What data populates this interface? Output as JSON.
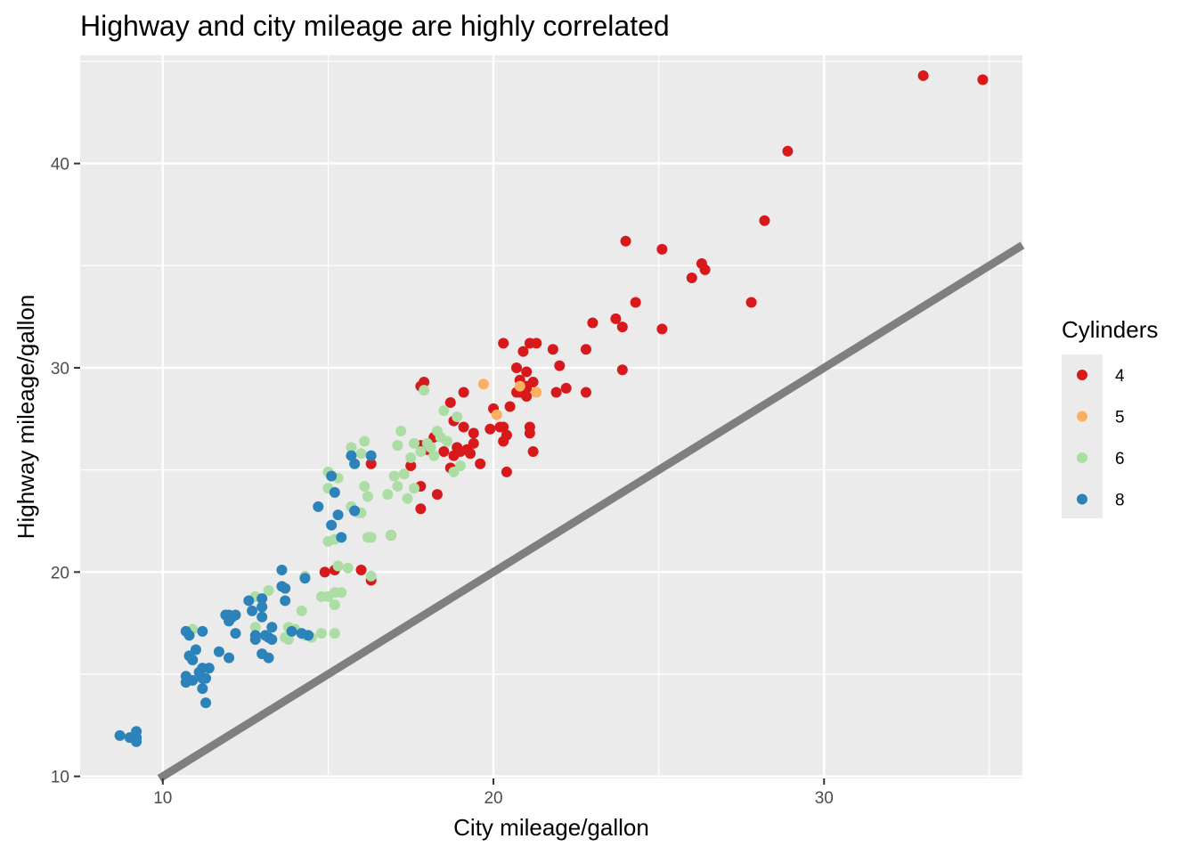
{
  "chart_data": {
    "type": "scatter",
    "title": "Highway and city mileage are highly correlated",
    "xlabel": "City mileage/gallon",
    "ylabel": "Highway mileage/gallon",
    "xlim": [
      7.5,
      36.0
    ],
    "ylim": [
      9.9,
      45.3
    ],
    "x_ticks": [
      10,
      20,
      30
    ],
    "y_ticks": [
      10,
      20,
      30,
      40
    ],
    "grid": true,
    "background": "#ebebeb",
    "reference_line": {
      "slope": 1,
      "intercept": 0,
      "color": "#7f7f7f"
    },
    "legend": {
      "title": "Cylinders",
      "position": "right",
      "entries": [
        {
          "label": "4",
          "color": "#d7191c"
        },
        {
          "label": "5",
          "color": "#fdae61"
        },
        {
          "label": "6",
          "color": "#abdda4"
        },
        {
          "label": "8",
          "color": "#2b83ba"
        }
      ]
    },
    "series": [
      {
        "name": "4",
        "color": "#d7191c",
        "points": [
          [
            33.0,
            44.3
          ],
          [
            34.8,
            44.1
          ],
          [
            28.9,
            40.6
          ],
          [
            28.2,
            37.2
          ],
          [
            24.0,
            36.2
          ],
          [
            25.1,
            35.8
          ],
          [
            26.3,
            35.1
          ],
          [
            26.4,
            34.8
          ],
          [
            26.0,
            34.4
          ],
          [
            27.8,
            33.2
          ],
          [
            24.3,
            33.2
          ],
          [
            23.7,
            32.4
          ],
          [
            23.0,
            32.2
          ],
          [
            23.9,
            32.0
          ],
          [
            25.1,
            31.9
          ],
          [
            20.3,
            31.2
          ],
          [
            21.1,
            31.2
          ],
          [
            21.3,
            31.2
          ],
          [
            22.8,
            30.9
          ],
          [
            21.8,
            30.9
          ],
          [
            20.9,
            30.8
          ],
          [
            22.0,
            30.1
          ],
          [
            20.7,
            30.0
          ],
          [
            23.9,
            29.9
          ],
          [
            21.0,
            29.8
          ],
          [
            20.8,
            29.4
          ],
          [
            21.2,
            29.3
          ],
          [
            17.9,
            29.3
          ],
          [
            17.8,
            29.1
          ],
          [
            21.0,
            29.0
          ],
          [
            22.2,
            29.0
          ],
          [
            21.0,
            29.1
          ],
          [
            20.7,
            28.8
          ],
          [
            21.9,
            28.8
          ],
          [
            22.8,
            28.8
          ],
          [
            19.1,
            28.8
          ],
          [
            20.8,
            28.8
          ],
          [
            21.0,
            28.6
          ],
          [
            18.7,
            28.3
          ],
          [
            20.0,
            28.0
          ],
          [
            20.5,
            28.1
          ],
          [
            19.9,
            27.0
          ],
          [
            20.3,
            27.1
          ],
          [
            20.2,
            27.1
          ],
          [
            21.1,
            27.1
          ],
          [
            21.1,
            26.8
          ],
          [
            20.4,
            26.7
          ],
          [
            18.8,
            27.4
          ],
          [
            19.1,
            27.1
          ],
          [
            19.4,
            26.8
          ],
          [
            18.2,
            26.6
          ],
          [
            18.9,
            26.1
          ],
          [
            19.2,
            26.0
          ],
          [
            19.4,
            26.3
          ],
          [
            19.3,
            25.8
          ],
          [
            18.8,
            25.7
          ],
          [
            17.8,
            26.2
          ],
          [
            18.0,
            26.0
          ],
          [
            18.5,
            25.9
          ],
          [
            20.3,
            26.4
          ],
          [
            21.2,
            25.9
          ],
          [
            19.0,
            25.9
          ],
          [
            18.7,
            25.1
          ],
          [
            19.6,
            25.3
          ],
          [
            17.5,
            25.2
          ],
          [
            16.3,
            25.3
          ],
          [
            20.4,
            24.9
          ],
          [
            17.8,
            24.2
          ],
          [
            18.3,
            23.8
          ],
          [
            17.8,
            23.1
          ],
          [
            16.9,
            21.8
          ],
          [
            16.0,
            20.1
          ],
          [
            14.9,
            20.0
          ],
          [
            15.2,
            20.1
          ],
          [
            16.3,
            19.6
          ]
        ]
      },
      {
        "name": "5",
        "color": "#fdae61",
        "points": [
          [
            19.7,
            29.2
          ],
          [
            20.8,
            29.1
          ],
          [
            21.3,
            28.8
          ],
          [
            20.1,
            27.7
          ]
        ]
      },
      {
        "name": "6",
        "color": "#abdda4",
        "points": [
          [
            17.9,
            28.9
          ],
          [
            18.5,
            27.9
          ],
          [
            18.9,
            27.6
          ],
          [
            18.3,
            26.9
          ],
          [
            17.2,
            26.9
          ],
          [
            16.1,
            26.4
          ],
          [
            15.7,
            26.1
          ],
          [
            17.1,
            26.2
          ],
          [
            17.6,
            26.3
          ],
          [
            18.0,
            26.3
          ],
          [
            18.4,
            26.6
          ],
          [
            18.1,
            26.1
          ],
          [
            18.6,
            26.4
          ],
          [
            17.8,
            25.9
          ],
          [
            18.2,
            25.7
          ],
          [
            17.5,
            25.6
          ],
          [
            16.0,
            25.8
          ],
          [
            19.0,
            25.2
          ],
          [
            18.8,
            24.9
          ],
          [
            17.3,
            24.8
          ],
          [
            17.0,
            24.7
          ],
          [
            17.1,
            24.2
          ],
          [
            17.6,
            24.1
          ],
          [
            17.4,
            23.6
          ],
          [
            15.0,
            24.9
          ],
          [
            15.3,
            24.6
          ],
          [
            15.0,
            24.1
          ],
          [
            16.1,
            24.2
          ],
          [
            16.8,
            23.8
          ],
          [
            16.2,
            23.7
          ],
          [
            15.7,
            23.2
          ],
          [
            15.9,
            22.9
          ],
          [
            16.0,
            22.9
          ],
          [
            15.2,
            21.6
          ],
          [
            15.0,
            21.5
          ],
          [
            16.2,
            21.7
          ],
          [
            16.3,
            21.7
          ],
          [
            16.9,
            21.8
          ],
          [
            15.3,
            20.3
          ],
          [
            15.6,
            20.2
          ],
          [
            16.3,
            19.8
          ],
          [
            14.3,
            19.8
          ],
          [
            15.4,
            19.0
          ],
          [
            15.2,
            19.0
          ],
          [
            15.0,
            18.8
          ],
          [
            14.8,
            18.8
          ],
          [
            15.2,
            18.4
          ],
          [
            14.2,
            18.1
          ],
          [
            13.2,
            19.1
          ],
          [
            12.8,
            18.8
          ],
          [
            13.0,
            18.3
          ],
          [
            12.8,
            17.3
          ],
          [
            13.8,
            17.3
          ],
          [
            14.0,
            17.2
          ],
          [
            14.8,
            17.0
          ],
          [
            15.2,
            17.0
          ],
          [
            14.3,
            16.9
          ],
          [
            14.5,
            16.8
          ],
          [
            13.7,
            16.8
          ],
          [
            13.8,
            16.7
          ],
          [
            10.9,
            17.2
          ]
        ]
      },
      {
        "name": "8",
        "color": "#2b83ba",
        "points": [
          [
            16.3,
            25.7
          ],
          [
            15.7,
            25.7
          ],
          [
            15.8,
            25.3
          ],
          [
            15.1,
            24.7
          ],
          [
            15.2,
            23.9
          ],
          [
            14.7,
            23.2
          ],
          [
            15.8,
            23.0
          ],
          [
            15.3,
            22.8
          ],
          [
            15.1,
            22.3
          ],
          [
            15.4,
            21.7
          ],
          [
            13.6,
            20.1
          ],
          [
            14.3,
            19.7
          ],
          [
            13.6,
            19.3
          ],
          [
            13.7,
            19.2
          ],
          [
            13.0,
            18.7
          ],
          [
            12.6,
            18.6
          ],
          [
            13.0,
            18.3
          ],
          [
            13.7,
            18.6
          ],
          [
            12.7,
            18.1
          ],
          [
            12.0,
            17.9
          ],
          [
            12.2,
            17.9
          ],
          [
            11.9,
            17.9
          ],
          [
            12.1,
            17.8
          ],
          [
            13.0,
            17.8
          ],
          [
            12.0,
            17.6
          ],
          [
            13.3,
            17.3
          ],
          [
            13.9,
            17.1
          ],
          [
            14.2,
            17.0
          ],
          [
            12.2,
            17.0
          ],
          [
            11.2,
            17.1
          ],
          [
            10.7,
            17.1
          ],
          [
            10.8,
            16.9
          ],
          [
            14.4,
            16.9
          ],
          [
            13.1,
            16.9
          ],
          [
            12.8,
            16.9
          ],
          [
            13.2,
            16.8
          ],
          [
            13.3,
            16.7
          ],
          [
            12.8,
            16.7
          ],
          [
            13.0,
            16.0
          ],
          [
            13.2,
            15.8
          ],
          [
            12.0,
            15.8
          ],
          [
            11.7,
            16.1
          ],
          [
            11.0,
            16.2
          ],
          [
            10.8,
            15.9
          ],
          [
            10.9,
            15.7
          ],
          [
            11.2,
            15.3
          ],
          [
            11.4,
            15.3
          ],
          [
            11.1,
            15.1
          ],
          [
            11.3,
            14.8
          ],
          [
            11.2,
            14.8
          ],
          [
            10.7,
            14.9
          ],
          [
            10.9,
            14.7
          ],
          [
            10.7,
            14.6
          ],
          [
            11.2,
            14.3
          ],
          [
            11.3,
            13.6
          ],
          [
            8.7,
            12.0
          ],
          [
            9.0,
            11.9
          ],
          [
            9.2,
            12.2
          ],
          [
            9.2,
            11.9
          ],
          [
            9.2,
            11.7
          ]
        ]
      }
    ]
  }
}
